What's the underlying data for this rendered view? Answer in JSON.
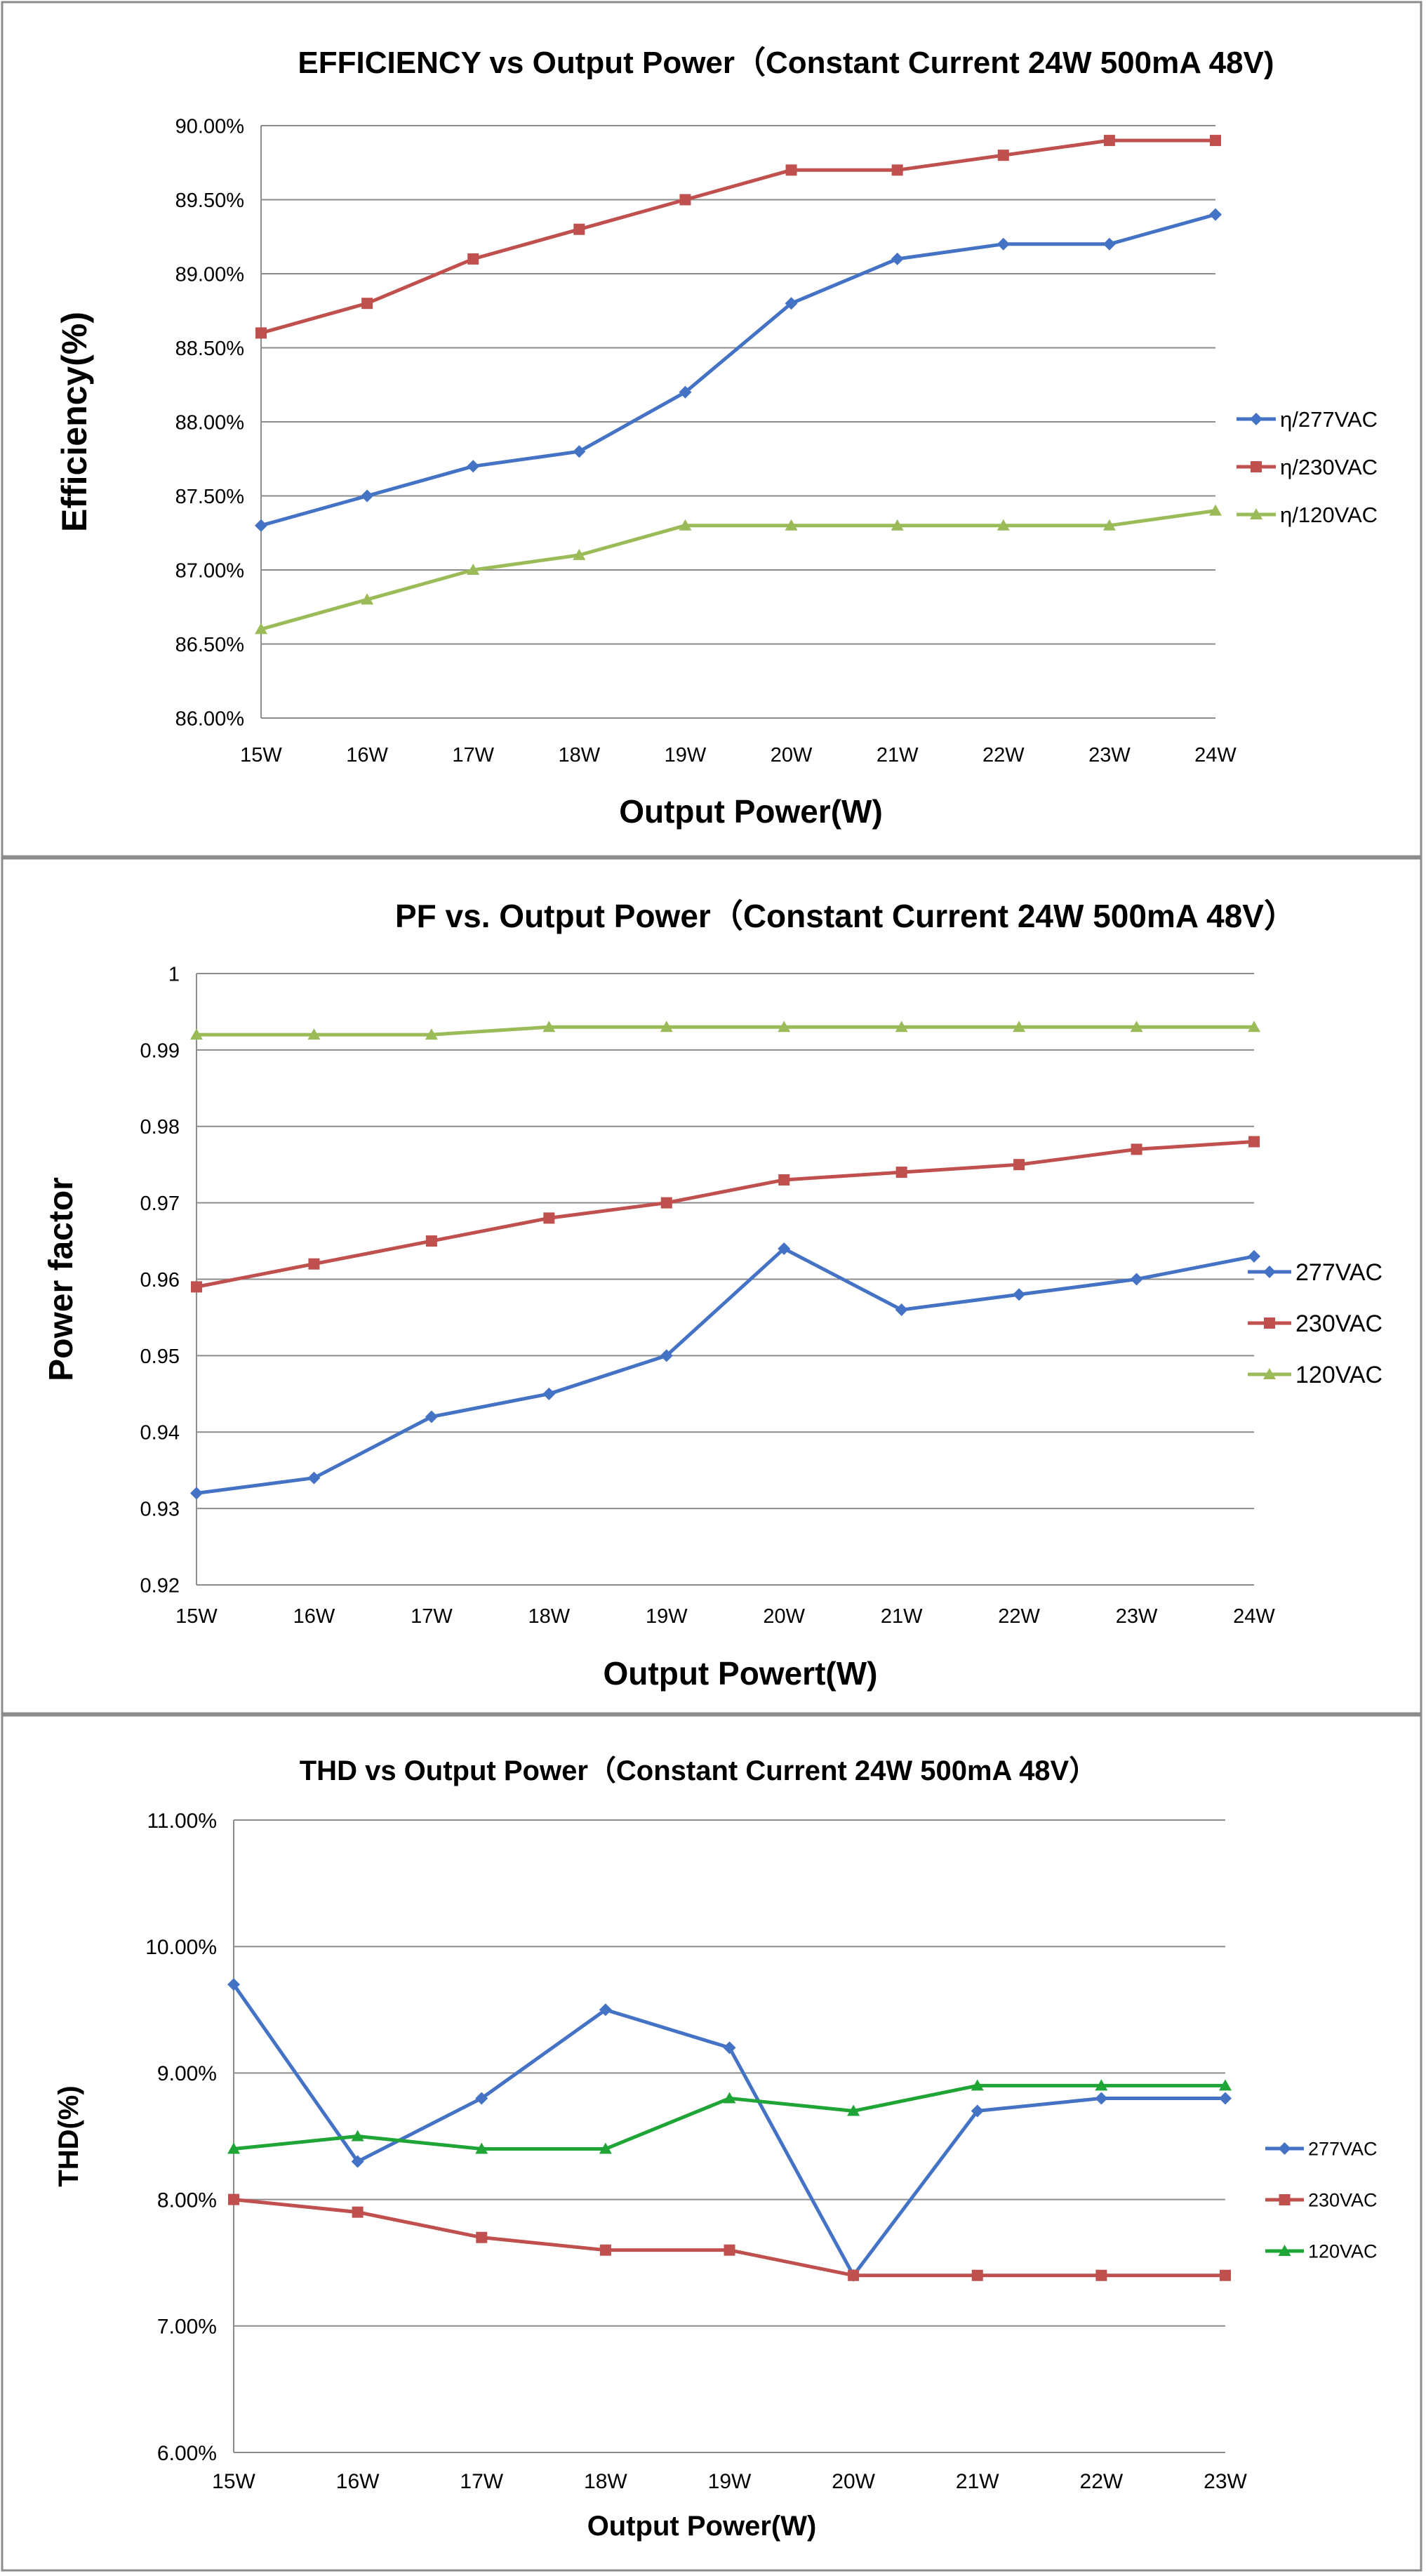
{
  "chart_data": [
    {
      "type": "line",
      "title": "EFFICIENCY vs Output Power（Constant Current 24W 500mA 48V)",
      "xlabel": "Output Power(W)",
      "ylabel": "Efficiency(%)",
      "categories": [
        "15W",
        "16W",
        "17W",
        "18W",
        "19W",
        "20W",
        "21W",
        "22W",
        "23W",
        "24W"
      ],
      "ylim": [
        86.0,
        90.0
      ],
      "yticks": [
        86.0,
        86.5,
        87.0,
        87.5,
        88.0,
        88.5,
        89.0,
        89.5,
        90.0
      ],
      "ytick_labels": [
        "86.00%",
        "86.50%",
        "87.00%",
        "87.50%",
        "88.00%",
        "88.50%",
        "89.00%",
        "89.50%",
        "90.00%"
      ],
      "grid": true,
      "legend_position": "right",
      "series": [
        {
          "name": "η/277VAC",
          "color": "#4472C4",
          "marker": "diamond",
          "values": [
            87.3,
            87.5,
            87.7,
            87.8,
            88.2,
            88.8,
            89.1,
            89.2,
            89.2,
            89.4
          ]
        },
        {
          "name": "η/230VAC",
          "color": "#C0504D",
          "marker": "square",
          "values": [
            88.6,
            88.8,
            89.1,
            89.3,
            89.5,
            89.7,
            89.7,
            89.8,
            89.9,
            89.9
          ]
        },
        {
          "name": "η/120VAC",
          "color": "#9BBB59",
          "marker": "triangle",
          "values": [
            86.6,
            86.8,
            87.0,
            87.1,
            87.3,
            87.3,
            87.3,
            87.3,
            87.3,
            87.4
          ]
        }
      ]
    },
    {
      "type": "line",
      "title": "PF vs. Output Power（Constant Current 24W 500mA 48V）",
      "xlabel": "Output Powert(W)",
      "ylabel": "Power factor",
      "categories": [
        "15W",
        "16W",
        "17W",
        "18W",
        "19W",
        "20W",
        "21W",
        "22W",
        "23W",
        "24W"
      ],
      "ylim": [
        0.92,
        1.0
      ],
      "yticks": [
        0.92,
        0.93,
        0.94,
        0.95,
        0.96,
        0.97,
        0.98,
        0.99,
        1.0
      ],
      "ytick_labels": [
        "0.92",
        "0.93",
        "0.94",
        "0.95",
        "0.96",
        "0.97",
        "0.98",
        "0.99",
        "1"
      ],
      "grid": true,
      "legend_position": "right",
      "series": [
        {
          "name": "277VAC",
          "color": "#4472C4",
          "marker": "diamond",
          "values": [
            0.932,
            0.934,
            0.942,
            0.945,
            0.95,
            0.964,
            0.956,
            0.958,
            0.96,
            0.963
          ]
        },
        {
          "name": "230VAC",
          "color": "#C0504D",
          "marker": "square",
          "values": [
            0.959,
            0.962,
            0.965,
            0.968,
            0.97,
            0.973,
            0.974,
            0.975,
            0.977,
            0.978
          ]
        },
        {
          "name": "120VAC",
          "color": "#9BBB59",
          "marker": "triangle",
          "values": [
            0.992,
            0.992,
            0.992,
            0.993,
            0.993,
            0.993,
            0.993,
            0.993,
            0.993,
            0.993
          ]
        }
      ]
    },
    {
      "type": "line",
      "title": "THD vs Output Power（Constant Current 24W  500mA 48V）",
      "xlabel": "Output Power(W)",
      "ylabel": "THD(%)",
      "categories": [
        "15W",
        "16W",
        "17W",
        "18W",
        "19W",
        "20W",
        "21W",
        "22W",
        "23W"
      ],
      "ylim": [
        6.0,
        11.0
      ],
      "yticks": [
        6.0,
        7.0,
        8.0,
        9.0,
        10.0,
        11.0
      ],
      "ytick_labels": [
        "6.00%",
        "7.00%",
        "8.00%",
        "9.00%",
        "10.00%",
        "11.00%"
      ],
      "grid": true,
      "legend_position": "right",
      "series": [
        {
          "name": "277VAC",
          "color": "#4472C4",
          "marker": "diamond",
          "values": [
            9.7,
            8.3,
            8.8,
            9.5,
            9.2,
            7.4,
            8.7,
            8.8,
            8.8
          ]
        },
        {
          "name": "230VAC",
          "color": "#C0504D",
          "marker": "square",
          "values": [
            8.0,
            7.9,
            7.7,
            7.6,
            7.6,
            7.4,
            7.4,
            7.4,
            7.4
          ]
        },
        {
          "name": "120VAC",
          "color": "#1FA535",
          "marker": "triangle",
          "values": [
            8.4,
            8.5,
            8.4,
            8.4,
            8.8,
            8.7,
            8.9,
            8.9,
            8.9
          ]
        }
      ]
    }
  ]
}
